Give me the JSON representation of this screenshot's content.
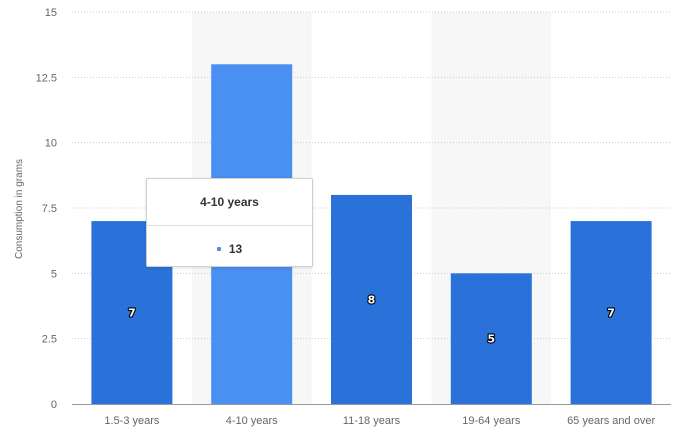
{
  "chart_data": {
    "type": "bar",
    "categories": [
      "1.5-3 years",
      "4-10 years",
      "11-18 years",
      "19-64 years",
      "65 years and over"
    ],
    "values": [
      7,
      13,
      8,
      5,
      7
    ],
    "data_labels": [
      "7",
      "",
      "8",
      "5",
      "7"
    ],
    "ylabel": "Consumption in grams",
    "ylim": [
      0,
      15
    ],
    "yticks": [
      "0",
      "2.5",
      "5",
      "7.5",
      "10",
      "12.5",
      "15"
    ],
    "grid": true,
    "highlighted_category": 1,
    "colors": {
      "bar": "#2a72d9",
      "bar_highlight": "#4990f2",
      "band": "#f7f7f7",
      "grid": "#cccccc"
    }
  },
  "tooltip": {
    "title": "4-10 years",
    "value": "13"
  }
}
